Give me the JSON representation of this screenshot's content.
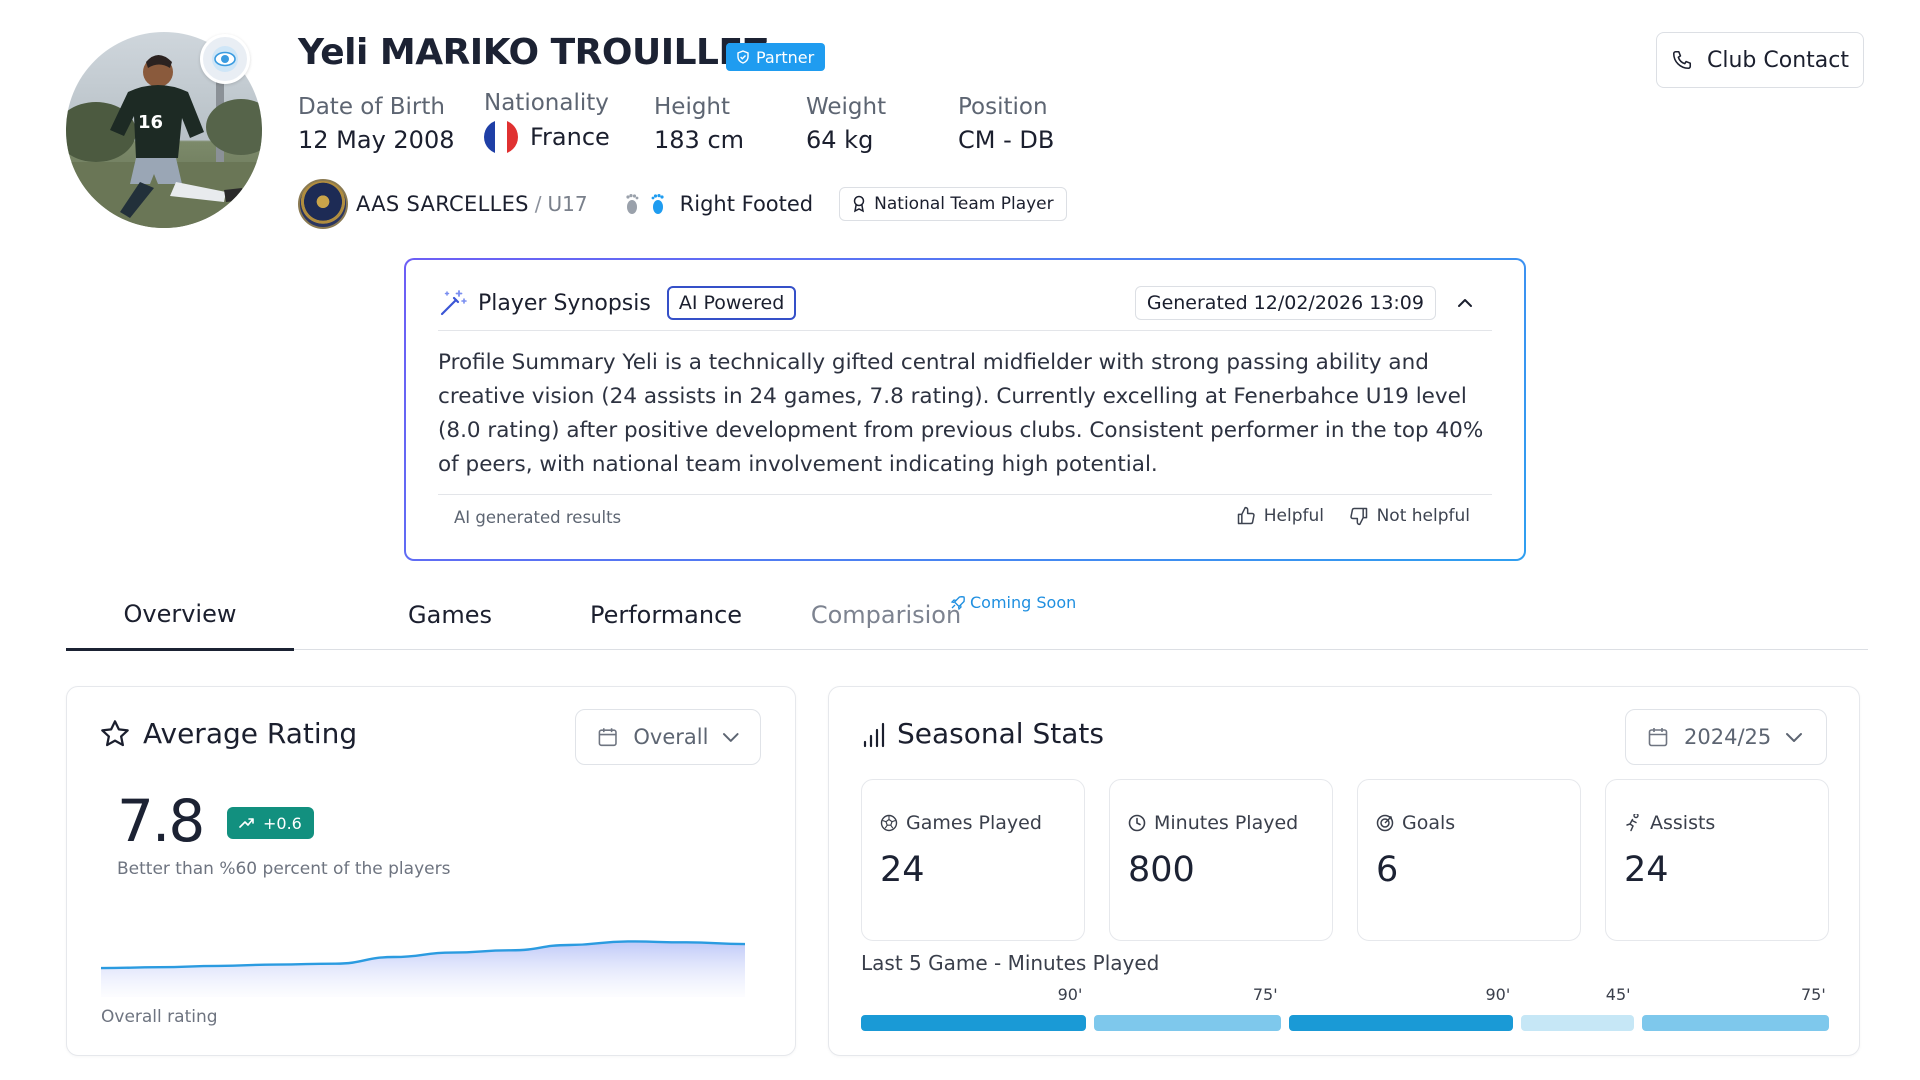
{
  "player": {
    "name": "Yeli MARIKO TROUILLEZ",
    "partner_label": "Partner",
    "fields": [
      {
        "label": "Date of Birth",
        "value": "12 May 2008"
      },
      {
        "label": "Nationality",
        "value": "France"
      },
      {
        "label": "Height",
        "value": "183 cm"
      },
      {
        "label": "Weight",
        "value": "64 kg"
      },
      {
        "label": "Position",
        "value": "CM - DB"
      }
    ],
    "club": "AAS SARCELLES",
    "club_separator": "/",
    "team": "U17",
    "footed": "Right Footed",
    "national_badge": "National Team Player",
    "flag_colors": [
      "#1f3fa6",
      "#ffffff",
      "#e03131"
    ]
  },
  "header": {
    "club_contact_label": "Club Contact"
  },
  "synopsis": {
    "title": "Player Synopsis",
    "ai_badge": "AI Powered",
    "generated": "Generated 12/02/2026 13:09",
    "text": "Profile Summary Yeli is a technically gifted central midfielder with strong passing ability and creative vision (24 assists in 24 games, 7.8 rating). Currently excelling at Fenerbahce U19 level (8.0 rating) after positive development from previous clubs. Consistent performer in the top 40% of peers, with national team involvement indicating high potential.",
    "footer_label": "AI generated results",
    "helpful_label": "Helpful",
    "not_helpful_label": "Not helpful"
  },
  "tabs": [
    {
      "label": "Overview",
      "active": true
    },
    {
      "label": "Games",
      "active": false
    },
    {
      "label": "Performance",
      "active": false
    },
    {
      "label": "Comparision",
      "active": false
    }
  ],
  "coming_soon": "Coming Soon",
  "average_rating": {
    "title": "Average Rating",
    "filter": "Overall",
    "value": "7.8",
    "delta": "+0.6",
    "better_than": "Better than %60 percent of the players",
    "chart_label": "Overall rating",
    "trend": [
      7.2,
      7.22,
      7.25,
      7.28,
      7.3,
      7.45,
      7.55,
      7.6,
      7.72,
      7.8,
      7.78,
      7.74
    ],
    "colors": {
      "line": "#2b9be0",
      "delta_bg": "#12907f"
    }
  },
  "seasonal_stats": {
    "title": "Seasonal Stats",
    "season": "2024/25",
    "stats": [
      {
        "label": "Games Played",
        "value": "24",
        "icon": "soccer-ball-icon"
      },
      {
        "label": "Minutes Played",
        "value": "800",
        "icon": "clock-icon"
      },
      {
        "label": "Goals",
        "value": "6",
        "icon": "target-icon"
      },
      {
        "label": "Assists",
        "value": "24",
        "icon": "assist-icon"
      }
    ],
    "last5_title": "Last 5 Game - Minutes Played",
    "last5": [
      {
        "minutes": 90,
        "label": "90'",
        "color": "#1a9ad6"
      },
      {
        "minutes": 75,
        "label": "75'",
        "color": "#7ec8ec"
      },
      {
        "minutes": 90,
        "label": "90'",
        "color": "#1a9ad6"
      },
      {
        "minutes": 45,
        "label": "45'",
        "color": "#c6e7f6"
      },
      {
        "minutes": 75,
        "label": "75'",
        "color": "#7ec8ec"
      }
    ]
  }
}
